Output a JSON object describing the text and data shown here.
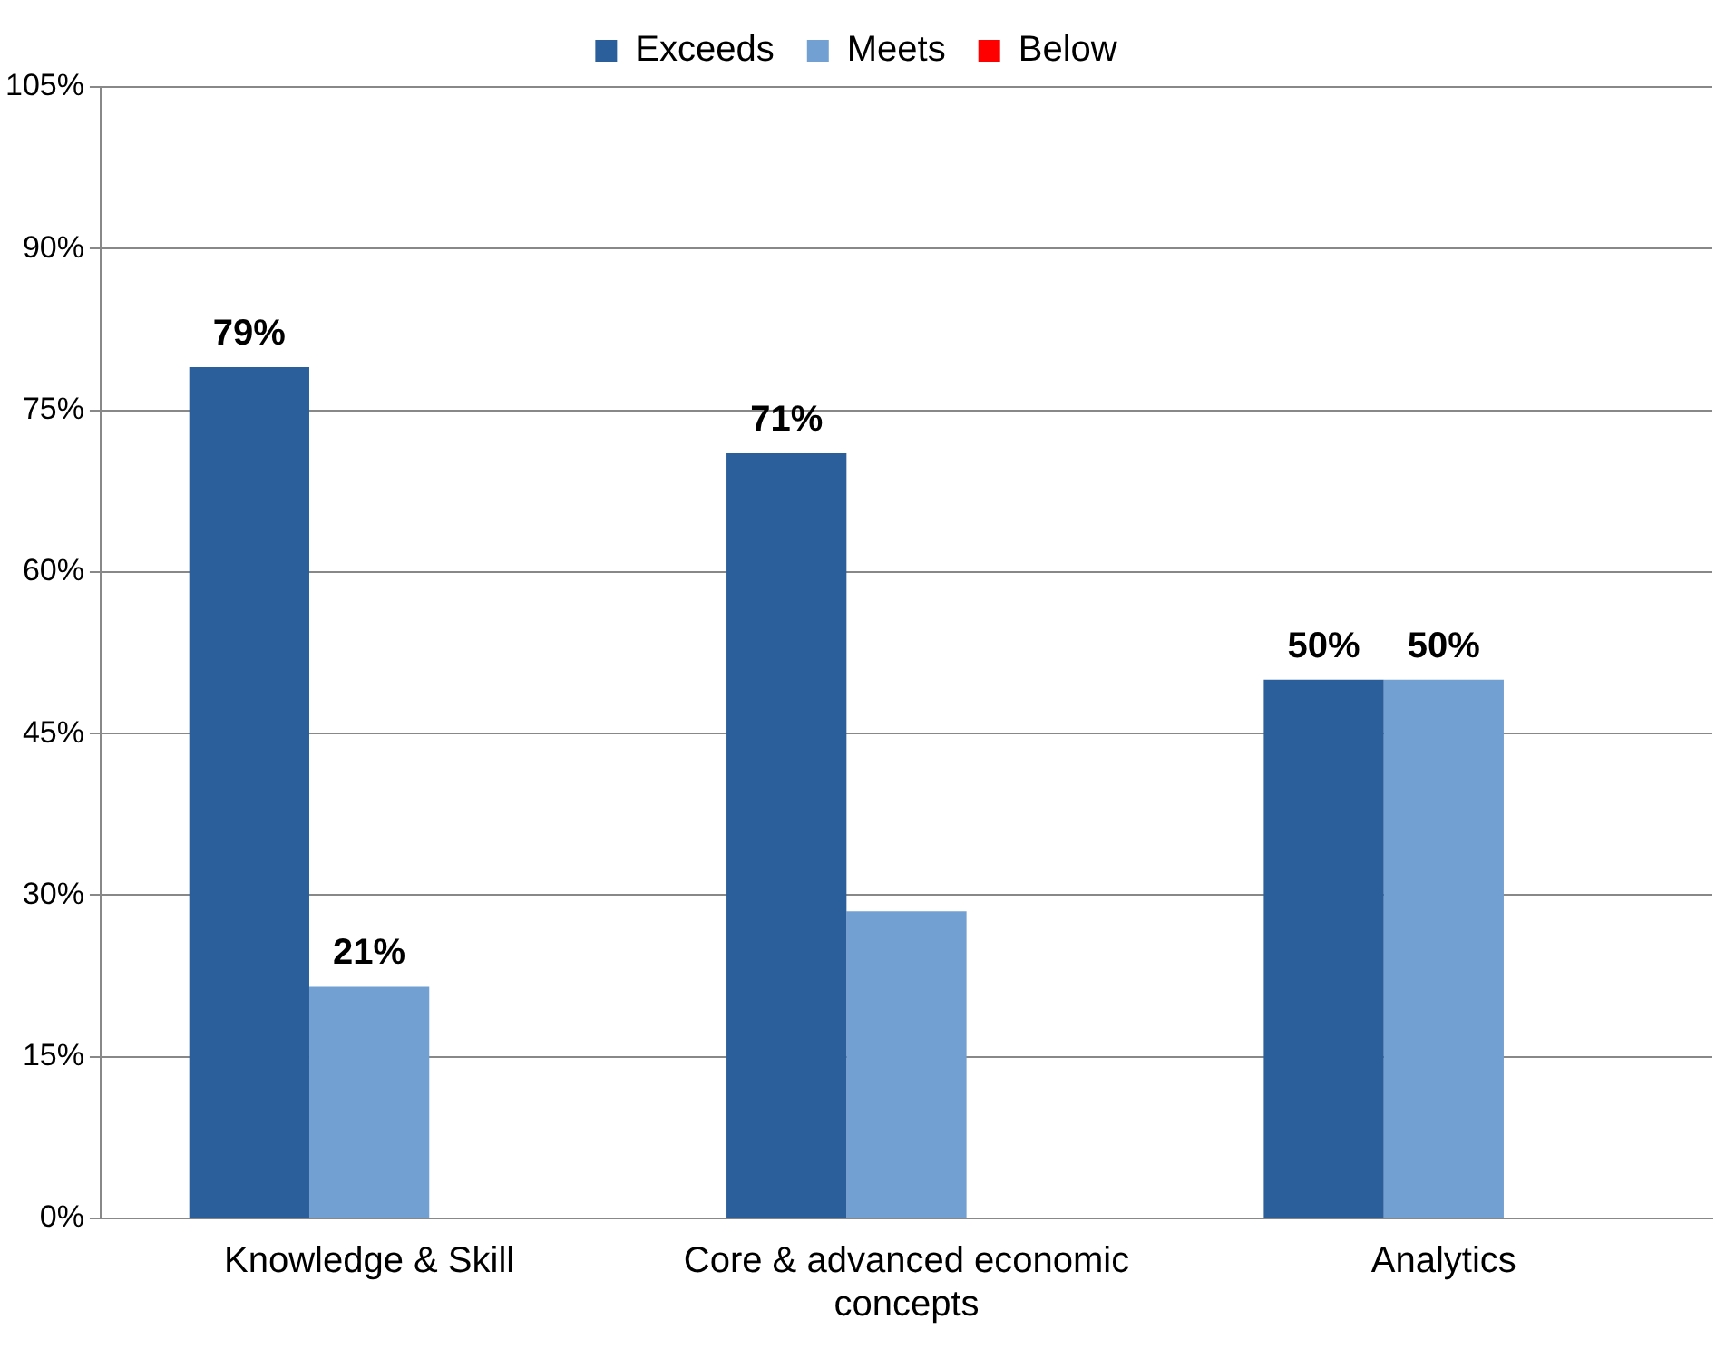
{
  "chart_data": {
    "type": "bar",
    "categories": [
      "Knowledge & Skill",
      "Core & advanced economic concepts",
      "Analytics"
    ],
    "series": [
      {
        "name": "Exceeds",
        "color": "#2a5f9b",
        "values": [
          79,
          71,
          50
        ],
        "value_labels": [
          "79%",
          "71%",
          "50%"
        ]
      },
      {
        "name": "Meets",
        "color": "#73a0d2",
        "values": [
          21.5,
          28.5,
          50
        ],
        "value_labels": [
          "21%",
          null,
          "50%"
        ]
      },
      {
        "name": "Below",
        "color": "#ff0000",
        "values": [
          0,
          0,
          0
        ],
        "value_labels": [
          null,
          null,
          null
        ]
      }
    ],
    "ylim": [
      0,
      105
    ],
    "yticks": [
      {
        "value": 0,
        "label": "0%"
      },
      {
        "value": 15,
        "label": "15%"
      },
      {
        "value": 30,
        "label": "30%"
      },
      {
        "value": 45,
        "label": "45%"
      },
      {
        "value": 60,
        "label": "60%"
      },
      {
        "value": 75,
        "label": "75%"
      },
      {
        "value": 90,
        "label": "90%"
      },
      {
        "value": 105,
        "label": "105%"
      }
    ],
    "grid": "y",
    "legend": "top"
  }
}
